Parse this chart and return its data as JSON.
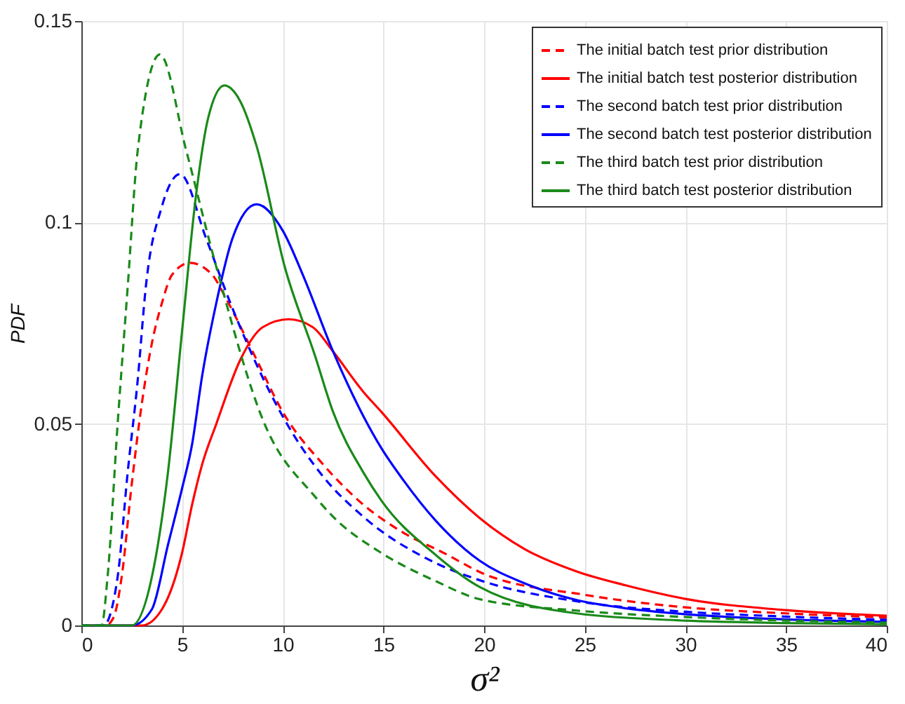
{
  "chart_data": {
    "type": "line",
    "xlabel": "σ²",
    "ylabel": "PDF",
    "xlim": [
      0,
      40
    ],
    "ylim": [
      0,
      0.15
    ],
    "xticks": [
      0,
      5,
      10,
      15,
      20,
      25,
      30,
      35,
      40
    ],
    "yticks": [
      0,
      0.05,
      0.1,
      0.15
    ],
    "grid": true,
    "legend": "top right",
    "marker": "none",
    "series": [
      {
        "name": "The initial batch test prior distribution",
        "color": "#ff0000",
        "line_style": "dashed",
        "x": [
          0,
          1.2,
          1.6,
          2,
          2.5,
          3,
          3.5,
          4,
          4.5,
          5.4,
          6.5,
          7.2,
          8.7,
          10,
          12,
          14,
          16,
          18,
          20,
          25,
          30,
          35,
          40
        ],
        "values": [
          0,
          0,
          0.002,
          0.012,
          0.035,
          0.055,
          0.07,
          0.08,
          0.087,
          0.09,
          0.087,
          0.081,
          0.066,
          0.053,
          0.04,
          0.03,
          0.023,
          0.018,
          0.0128,
          0.0076,
          0.0045,
          0.003,
          0.002
        ]
      },
      {
        "name": "The initial batch test posterior distribution",
        "color": "#ff0000",
        "line_style": "solid",
        "x": [
          0,
          3,
          4,
          5,
          5.5,
          6,
          6.7,
          7.9,
          9,
          10.3,
          11.5,
          12.5,
          14,
          14.9,
          17.6,
          19.8,
          22,
          24.6,
          27,
          30,
          35,
          40
        ],
        "values": [
          0,
          0,
          0.004,
          0.018,
          0.03,
          0.04,
          0.05,
          0.066,
          0.074,
          0.076,
          0.074,
          0.068,
          0.058,
          0.053,
          0.037,
          0.0266,
          0.019,
          0.0134,
          0.01,
          0.0066,
          0.0038,
          0.0024
        ]
      },
      {
        "name": "The second batch test prior distribution",
        "color": "#0000ff",
        "line_style": "dashed",
        "x": [
          0,
          1.1,
          1.8,
          2.3,
          2.8,
          3.2,
          4,
          4.9,
          6.2,
          7.4,
          10.1,
          12,
          14,
          17.6,
          19.8,
          24.6,
          30,
          35,
          40
        ],
        "values": [
          0,
          0,
          0.012,
          0.038,
          0.061,
          0.084,
          0.104,
          0.112,
          0.096,
          0.08,
          0.051,
          0.037,
          0.027,
          0.0155,
          0.0112,
          0.006,
          0.0034,
          0.0022,
          0.0014
        ]
      },
      {
        "name": "The second batch test posterior distribution",
        "color": "#0000ff",
        "line_style": "solid",
        "x": [
          0,
          2.5,
          3.5,
          4.3,
          5,
          5.5,
          6,
          6.7,
          7.5,
          8.7,
          10,
          11,
          12.5,
          14,
          14.9,
          16,
          17.6,
          19.8,
          22,
          24.6,
          27,
          30,
          35,
          40
        ],
        "values": [
          0,
          0,
          0.004,
          0.02,
          0.034,
          0.045,
          0.062,
          0.08,
          0.096,
          0.1045,
          0.098,
          0.087,
          0.068,
          0.052,
          0.044,
          0.036,
          0.026,
          0.016,
          0.0105,
          0.0063,
          0.0043,
          0.0028,
          0.0015,
          0.0009
        ]
      },
      {
        "name": "The third batch test prior distribution",
        "color": "#1a8a1a",
        "line_style": "dashed",
        "x": [
          0,
          1,
          1.3,
          1.8,
          2.3,
          2.8,
          3.9,
          5.2,
          6.7,
          9.1,
          11.6,
          12.5,
          14.9,
          17.6,
          19.8,
          24.6,
          30,
          35,
          40
        ],
        "values": [
          0,
          0,
          0.012,
          0.05,
          0.084,
          0.118,
          0.1417,
          0.118,
          0.089,
          0.05,
          0.032,
          0.027,
          0.018,
          0.011,
          0.0065,
          0.0037,
          0.0021,
          0.0012,
          0.0007
        ]
      },
      {
        "name": "The third batch test posterior distribution",
        "color": "#1a8a1a",
        "line_style": "solid",
        "x": [
          0,
          2.5,
          3.5,
          4.3,
          5,
          5.7,
          6.3,
          7.1,
          7.9,
          8.7,
          10.1,
          11.6,
          12.5,
          14,
          14.9,
          17.6,
          19.8,
          24.6,
          30,
          35,
          40
        ],
        "values": [
          0,
          0,
          0.012,
          0.038,
          0.073,
          0.107,
          0.126,
          0.134,
          0.13,
          0.119,
          0.089,
          0.067,
          0.053,
          0.038,
          0.031,
          0.0175,
          0.0095,
          0.003,
          0.0012,
          0.0006,
          0.0003
        ]
      }
    ]
  }
}
